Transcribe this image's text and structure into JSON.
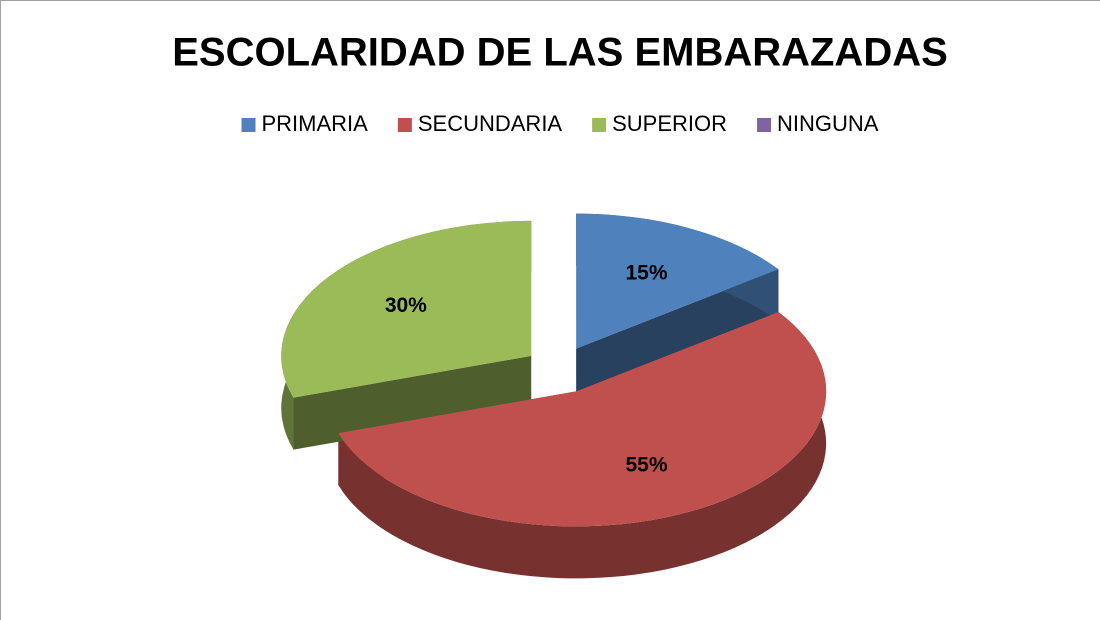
{
  "chart_data": {
    "type": "pie",
    "title": "ESCOLARIDAD DE LAS EMBARAZADAS",
    "categories": [
      "PRIMARIA",
      "SECUNDARIA",
      "SUPERIOR",
      "NINGUNA"
    ],
    "values": [
      15,
      55,
      30,
      0
    ],
    "value_labels": [
      "15%",
      "55%",
      "30%",
      null
    ],
    "colors": [
      "#4f81bd",
      "#c0504d",
      "#9bbb59",
      "#8064a2"
    ],
    "legend": "top"
  }
}
